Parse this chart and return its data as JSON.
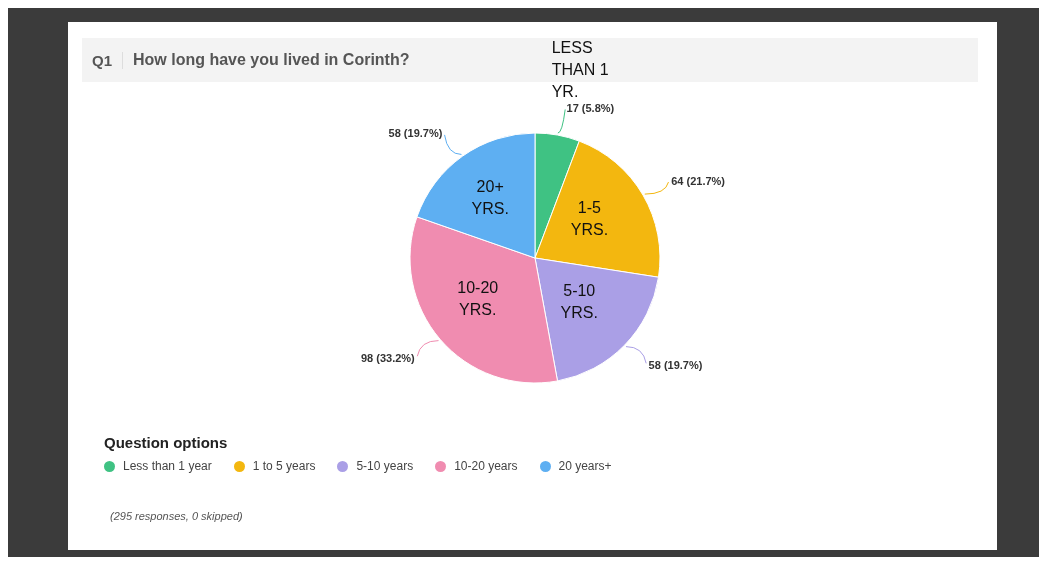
{
  "chart_data": {
    "type": "pie",
    "title": "Q1",
    "subtitle": "How long have you lived in Corinth?",
    "categories": [
      "Less than 1 year",
      "1 to 5 years",
      "5-10 years",
      "10-20 years",
      "20 years+"
    ],
    "values": [
      17,
      64,
      58,
      98,
      58
    ],
    "value_labels": [
      "17 (5.8%)",
      "64 (21.7%)",
      "58 (19.7%)",
      "98 (33.2%)",
      "58 (19.7%)"
    ],
    "colors": [
      "#3fc283",
      "#f3b70f",
      "#aa9fe6",
      "#f08cb0",
      "#5eaff2"
    ],
    "legend": "bottom",
    "legend_title": "Question options",
    "annotations": [
      {
        "text": "LESS THAN 1 YR.",
        "x": "Less than 1 year"
      },
      {
        "text": "1-5 YRS.",
        "x": "1 to 5 years"
      },
      {
        "text": "5-10 YRS.",
        "x": "5-10 years"
      },
      {
        "text": "10-20 YRS.",
        "x": "10-20 years"
      },
      {
        "text": "20+ YRS.",
        "x": "20 years+"
      },
      "(295 responses, 0 skipped)"
    ]
  }
}
